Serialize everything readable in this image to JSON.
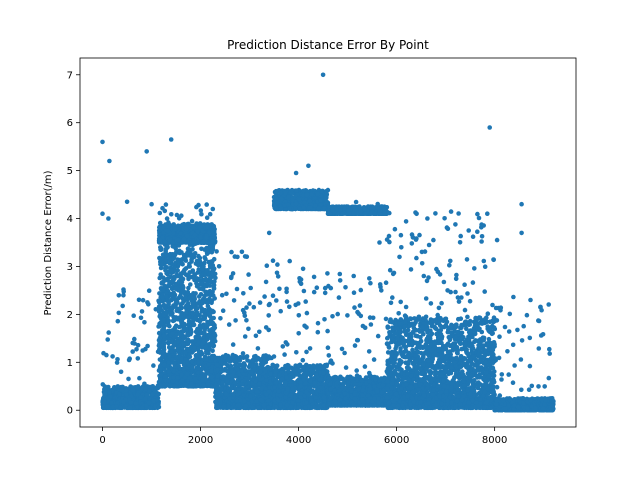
{
  "chart_data": {
    "type": "scatter",
    "title": "Prediction Distance Error By Point",
    "xlabel": "",
    "ylabel": "Prediction Distance Error(/m)",
    "xlim": [
      -460,
      9660
    ],
    "ylim": [
      -0.35,
      7.35
    ],
    "xticks": [
      0,
      2000,
      4000,
      6000,
      8000
    ],
    "yticks": [
      0,
      1,
      2,
      3,
      4,
      5,
      6,
      7
    ],
    "grid": false,
    "marker_color": "#1f77b4",
    "clusters": [
      {
        "name": "",
        "x_range": [
          0,
          1150
        ],
        "y_base": 0.05,
        "y_spread": 0.45
      },
      {
        "name": "",
        "x_range": [
          1150,
          2300
        ],
        "y_base": 0.5,
        "y_spread": 3.4
      },
      {
        "name": "",
        "x_range": [
          1150,
          2300
        ],
        "y_base": 3.5,
        "y_spread": 0.35
      },
      {
        "name": "",
        "x_range": [
          2300,
          3500
        ],
        "y_base": 0.05,
        "y_spread": 1.1
      },
      {
        "name": "",
        "x_range": [
          3500,
          4600
        ],
        "y_base": 0.05,
        "y_spread": 0.9
      },
      {
        "name": "",
        "x_range": [
          3500,
          4600
        ],
        "y_base": 4.2,
        "y_spread": 0.4
      },
      {
        "name": "",
        "x_range": [
          4600,
          5800
        ],
        "y_base": 0.1,
        "y_spread": 0.6
      },
      {
        "name": "",
        "x_range": [
          4600,
          5800
        ],
        "y_base": 4.1,
        "y_spread": 0.15
      },
      {
        "name": "",
        "x_range": [
          5800,
          8000
        ],
        "y_base": 0.05,
        "y_spread": 1.9
      },
      {
        "name": "",
        "x_range": [
          8000,
          9200
        ],
        "y_base": 0.0,
        "y_spread": 0.25
      }
    ],
    "outliers": [
      {
        "x": 0,
        "y": 5.6
      },
      {
        "x": 140,
        "y": 5.2
      },
      {
        "x": 900,
        "y": 5.4
      },
      {
        "x": 1400,
        "y": 5.65
      },
      {
        "x": 4500,
        "y": 7.0
      },
      {
        "x": 7900,
        "y": 5.9
      },
      {
        "x": 4200,
        "y": 5.1
      },
      {
        "x": 3950,
        "y": 4.95
      },
      {
        "x": 8550,
        "y": 4.3
      },
      {
        "x": 0,
        "y": 4.1
      },
      {
        "x": 120,
        "y": 4.0
      },
      {
        "x": 500,
        "y": 4.35
      },
      {
        "x": 1000,
        "y": 4.3
      },
      {
        "x": 2250,
        "y": 4.2
      },
      {
        "x": 7850,
        "y": 4.1
      },
      {
        "x": 6750,
        "y": 3.55
      },
      {
        "x": 8050,
        "y": 3.55
      },
      {
        "x": 8550,
        "y": 3.7
      },
      {
        "x": 3400,
        "y": 3.7
      },
      {
        "x": 5650,
        "y": 3.5
      }
    ]
  }
}
